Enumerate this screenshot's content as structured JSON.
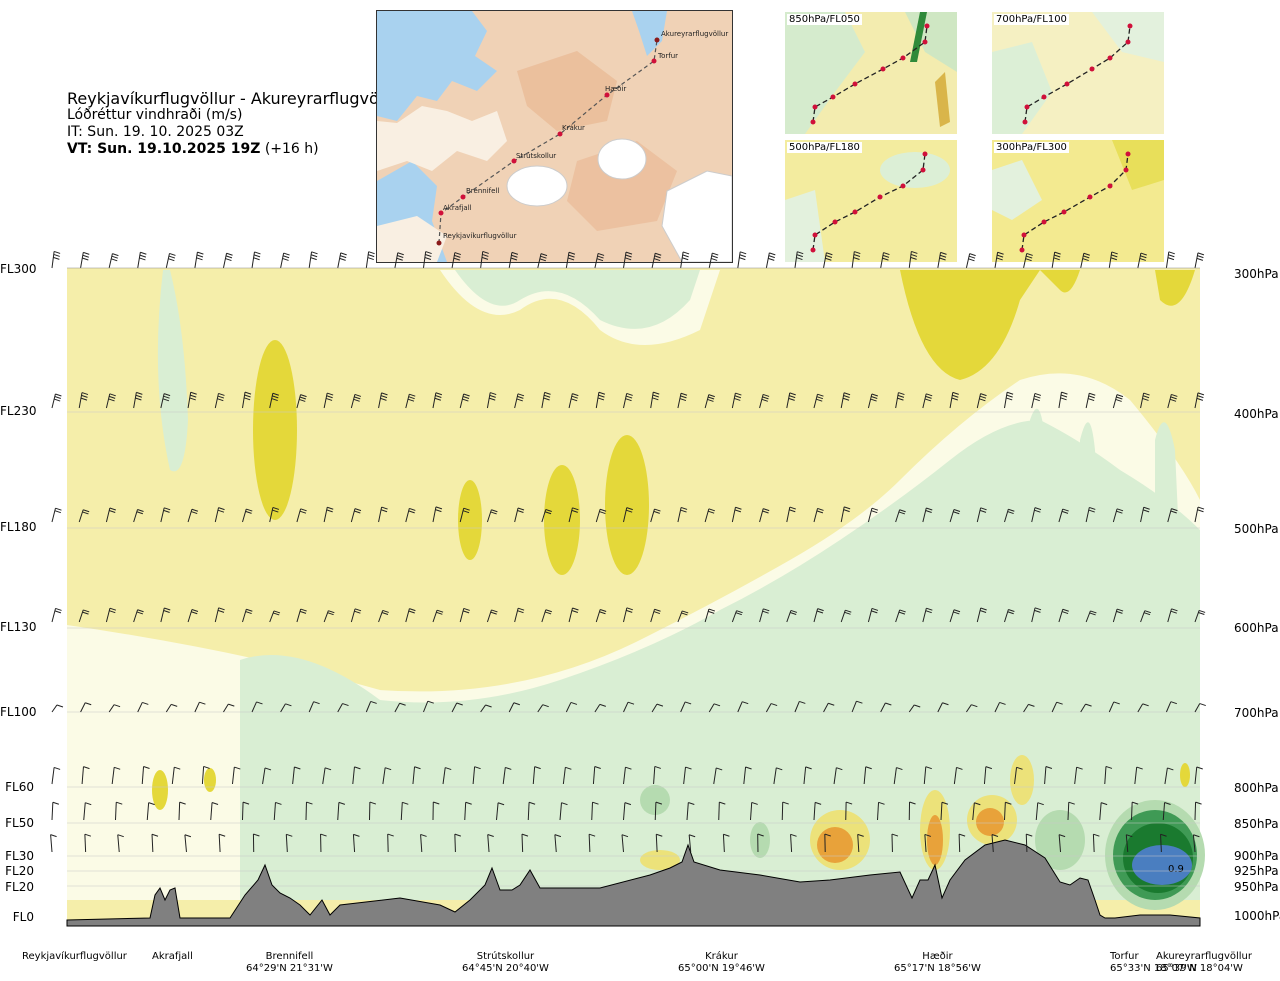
{
  "header": {
    "route": "Reykjavíkurflugvöllur - Akureyrarflugvöllur",
    "variable": "Lóðréttur vindhraði (m/s)",
    "issue_time": "IT: Sun. 19. 10. 2025 03Z",
    "valid_time_bold": "VT: Sun. 19.10.2025 19Z",
    "valid_time_offset": "(+16 h)"
  },
  "map": {
    "places": [
      {
        "name": "Akureyrarflugvöllur"
      },
      {
        "name": "Torfur"
      },
      {
        "name": "Hæðir"
      },
      {
        "name": "Krákur"
      },
      {
        "name": "Strútskollur"
      },
      {
        "name": "Brennifell"
      },
      {
        "name": "Akrafjall"
      },
      {
        "name": "Reykjavíkurflugvöllur"
      }
    ]
  },
  "mini_maps": [
    {
      "label": "850hPa/FL050"
    },
    {
      "label": "700hPa/FL100"
    },
    {
      "label": "500hPa/FL180"
    },
    {
      "label": "300hPa/FL300"
    }
  ],
  "levels": [
    {
      "fl": "FL300",
      "hpa": "300hPa"
    },
    {
      "fl": "FL230",
      "hpa": "400hPa"
    },
    {
      "fl": "FL180",
      "hpa": "500hPa"
    },
    {
      "fl": "FL130",
      "hpa": "600hPa"
    },
    {
      "fl": "FL100",
      "hpa": "700hPa"
    },
    {
      "fl": "FL60",
      "hpa": "800hPa"
    },
    {
      "fl": "FL50",
      "hpa": "850hPa"
    },
    {
      "fl": "FL30",
      "hpa": "900hPa"
    },
    {
      "fl": "FL20",
      "hpa": "925hPa"
    },
    {
      "fl": "FL20",
      "hpa": "950hPa"
    },
    {
      "fl": "FL0",
      "hpa": "1000hPa"
    }
  ],
  "waypoints": [
    {
      "name": "Reykjavíkurflugvöllur",
      "coord": ""
    },
    {
      "name": "Akrafjall",
      "coord": ""
    },
    {
      "name": "Brennifell",
      "coord": "64°29'N 21°31'W"
    },
    {
      "name": "Strútskollur",
      "coord": "64°45'N 20°40'W"
    },
    {
      "name": "Krákur",
      "coord": "65°00'N 19°46'W"
    },
    {
      "name": "Hæðir",
      "coord": "65°17'N 18°56'W"
    },
    {
      "name": "Torfur",
      "coord": "65°33'N 18°07'W"
    },
    {
      "name": "Akureyrarflugvöllur",
      "coord": "65°39'N 18°04'W"
    }
  ],
  "annotation": "0.9",
  "colors": {
    "weak_up": "#f5eeaa",
    "mod_up": "#ece27a",
    "strong_up": "#e4d83a",
    "near_zero": "#fbfbe6",
    "weak_down": "#d9eed3",
    "mod_down": "#b5dbb0",
    "strong_down": "#3f9a55",
    "very_strong_down": "#1a7a2f",
    "extreme_down": "#4a7ec0",
    "orange": "#e8a23a",
    "terrain": "#808080"
  },
  "chart_data": {
    "type": "heatmap",
    "title": "Reykjavíkurflugvöllur - Akureyrarflugvöllur",
    "subtitle": "Lóðréttur vindhraði (m/s)",
    "y_levels_hPa": [
      300,
      400,
      500,
      600,
      700,
      800,
      850,
      900,
      925,
      950,
      1000
    ],
    "y_levels_FL": [
      "FL300",
      "FL230",
      "FL180",
      "FL130",
      "FL100",
      "FL60",
      "FL50",
      "FL30",
      "FL20",
      "FL20",
      "FL0"
    ],
    "x_waypoints": [
      "Reykjavíkurflugvöllur",
      "Akrafjall",
      "Brennifell",
      "Strútskollur",
      "Krákur",
      "Hæðir",
      "Torfur",
      "Akureyrarflugvöllur"
    ],
    "annotations": [
      {
        "text": "0.9",
        "near": "Akureyrarflugvöllur",
        "level_hPa": 925
      }
    ]
  }
}
